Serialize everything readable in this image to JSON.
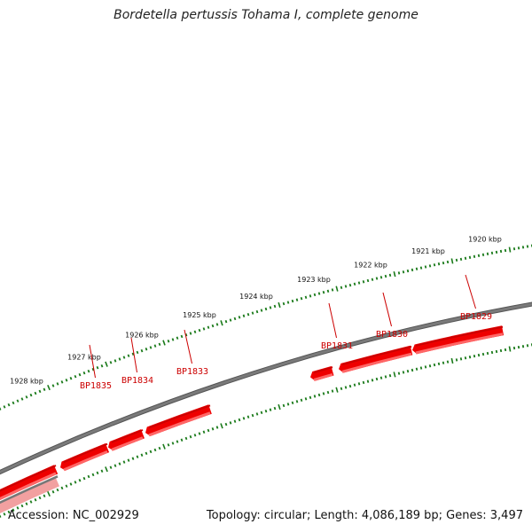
{
  "title": "Bordetella pertussis Tohama I, complete genome",
  "accession": "Accession: NC_002929",
  "summary": "Topology: circular; Length: 4,086,189 bp; Genes: 3,497",
  "scale": {
    "unit": "kbp",
    "labels": [
      {
        "kbp": 1928,
        "text": "1928 kbp"
      },
      {
        "kbp": 1927,
        "text": "1927 kbp"
      },
      {
        "kbp": 1926,
        "text": "1926 kbp"
      },
      {
        "kbp": 1925,
        "text": "1925 kbp"
      },
      {
        "kbp": 1924,
        "text": "1924 kbp"
      },
      {
        "kbp": 1923,
        "text": "1923 kbp"
      },
      {
        "kbp": 1922,
        "text": "1922 kbp"
      },
      {
        "kbp": 1921,
        "text": "1921 kbp"
      },
      {
        "kbp": 1920,
        "text": "1920 kbp"
      }
    ]
  },
  "genes": [
    {
      "id": "BP1829",
      "label": "BP1829"
    },
    {
      "id": "BP1830",
      "label": "BP1830"
    },
    {
      "id": "BP1831",
      "label": "BP1831"
    },
    {
      "id": "BP1833",
      "label": "BP1833"
    },
    {
      "id": "BP1834",
      "label": "BP1834"
    },
    {
      "id": "BP1835",
      "label": "BP1835"
    }
  ],
  "colors": {
    "backbone": "#7a7a7a",
    "gene": "#ee0000",
    "gene_highlight": "#ff6666",
    "ticks": "#1a7a1a",
    "gene_label": "#cc0000"
  }
}
